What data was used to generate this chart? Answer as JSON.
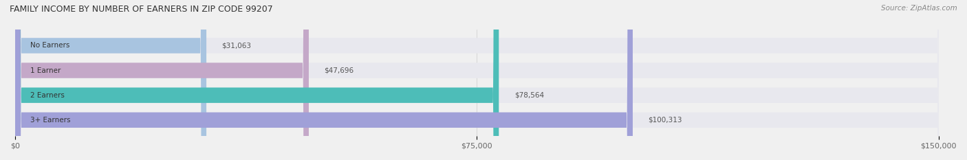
{
  "title": "FAMILY INCOME BY NUMBER OF EARNERS IN ZIP CODE 99207",
  "source": "Source: ZipAtlas.com",
  "categories": [
    "No Earners",
    "1 Earner",
    "2 Earners",
    "3+ Earners"
  ],
  "values": [
    31063,
    47696,
    78564,
    100313
  ],
  "bar_colors": [
    "#a8c4e0",
    "#c4a8c8",
    "#4dbdb8",
    "#a0a0d8"
  ],
  "value_labels": [
    "$31,063",
    "$47,696",
    "$78,564",
    "$100,313"
  ],
  "xlim": [
    0,
    150000
  ],
  "xticks": [
    0,
    75000,
    150000
  ],
  "xtick_labels": [
    "$0",
    "$75,000",
    "$150,000"
  ],
  "background_color": "#f0f0f0",
  "bar_background_color": "#e8e8ee",
  "figsize": [
    14.06,
    2.33
  ],
  "dpi": 100
}
